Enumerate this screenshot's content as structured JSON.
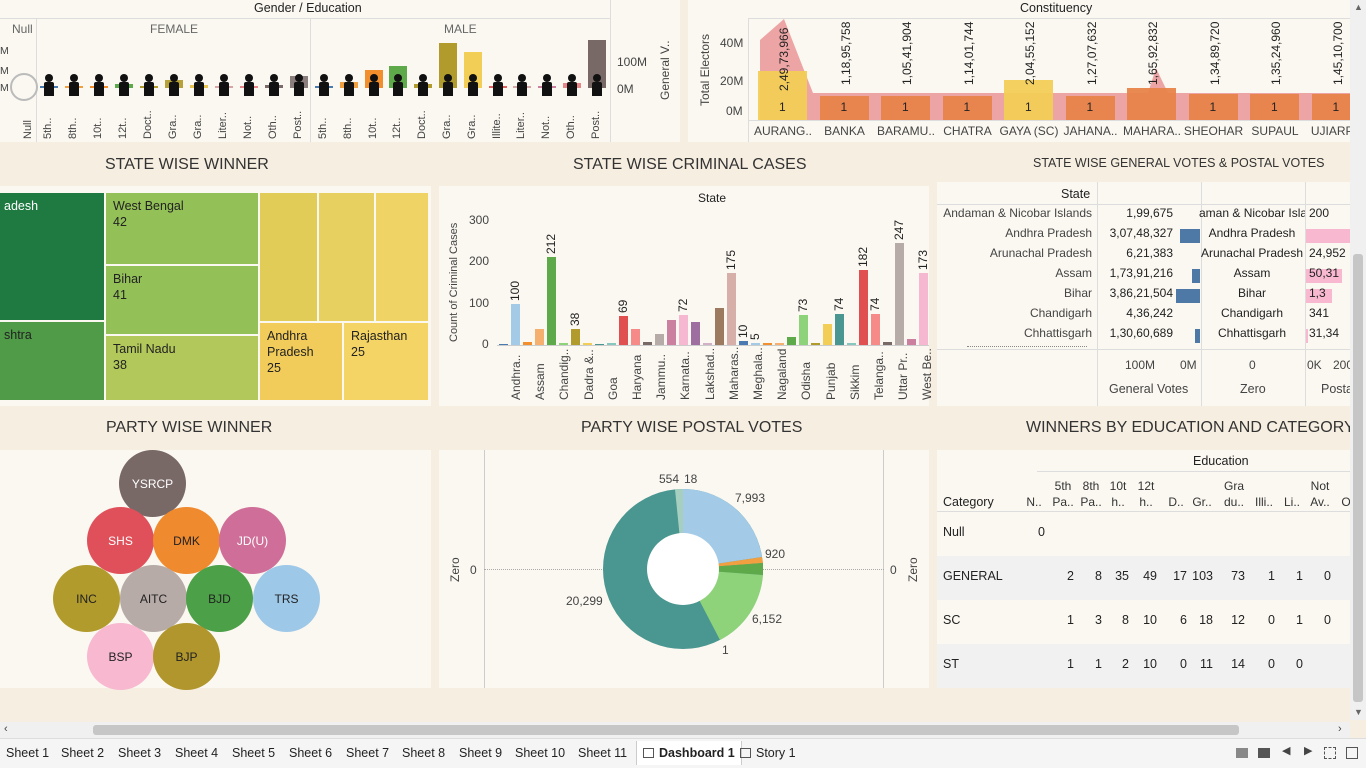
{
  "gender_panel": {
    "title": "Gender / Education",
    "groups": [
      "Null",
      "FEMALE",
      "MALE"
    ],
    "axis_label": "General V..",
    "ticks": [
      "100M",
      "0M"
    ],
    "left_ticks": [
      "M",
      "M",
      "M"
    ],
    "categories": [
      "Null",
      "5th..",
      "8th..",
      "10t..",
      "12t..",
      "Doct..",
      "Gra..",
      "Gra..",
      "Liter..",
      "Not..",
      "Oth..",
      "Post..",
      "5th..",
      "8th..",
      "10t..",
      "12t..",
      "Doct..",
      "Gra..",
      "Gra..",
      "Illite..",
      "Liter..",
      "Not..",
      "Oth..",
      "Post.."
    ]
  },
  "constituency_panel": {
    "title": "Constituency",
    "ylabel": "Total Electors",
    "yticks": [
      "40M",
      "20M",
      "0M"
    ],
    "names": [
      "AURANG..",
      "BANKA",
      "BARAMU..",
      "CHATRA",
      "GAYA (SC)",
      "JAHANA..",
      "MAHARA..",
      "SHEOHAR",
      "SUPAUL",
      "UJIARPU"
    ],
    "values": [
      "2,49,73,966",
      "1,18,95,758",
      "1,05,41,904",
      "1,14,01,744",
      "2,04,55,152",
      "1,27,07,632",
      "1,65,92,832",
      "1,34,89,720",
      "1,35,24,960",
      "1,45,10,700"
    ],
    "counts": [
      "1",
      "1",
      "1",
      "1",
      "1",
      "1",
      "",
      "1",
      "1",
      "1"
    ]
  },
  "state_winner": {
    "title": "STATE WISE WINNER",
    "cells": [
      {
        "name": "adesh",
        "value": ""
      },
      {
        "name": "shtra",
        "value": ""
      },
      {
        "name": "West Bengal",
        "value": "42"
      },
      {
        "name": "Bihar",
        "value": "41"
      },
      {
        "name": "Tamil Nadu",
        "value": "38"
      },
      {
        "name": "Andhra Pradesh",
        "value": "25"
      },
      {
        "name": "Rajasthan",
        "value": "25"
      }
    ]
  },
  "criminal_cases": {
    "title": "STATE WISE CRIMINAL CASES",
    "header": "State",
    "ylabel": "Count of Criminal Cases",
    "yticks": [
      "300",
      "200",
      "100",
      "0"
    ],
    "states": [
      "Andhra..",
      "Assam",
      "Chandig..",
      "Dadra &..",
      "Goa",
      "Haryana",
      "Jammu..",
      "Karnata..",
      "Lakshad..",
      "Maharas..",
      "Meghala..",
      "Nagaland",
      "Odisha",
      "Punjab",
      "Sikkim",
      "Telanga..",
      "Uttar Pr..",
      "West Be.."
    ],
    "labels": [
      "100",
      "212",
      "38",
      "69",
      "72",
      "175",
      "10",
      "5",
      "73",
      "74",
      "182",
      "74",
      "247",
      "173"
    ]
  },
  "general_postal": {
    "title": "STATE WISE GENERAL VOTES & POSTAL VOTES",
    "header": "State",
    "states": [
      "Andaman & Nicobar Islands",
      "Andhra Pradesh",
      "Arunachal Pradesh",
      "Assam",
      "Bihar",
      "Chandigarh",
      "Chhattisgarh"
    ],
    "general": [
      "1,99,675",
      "3,07,48,327",
      "6,21,383",
      "1,73,91,216",
      "3,86,21,504",
      "4,36,242",
      "1,30,60,689"
    ],
    "zero_states": [
      "aman & Nicobar Isla",
      "Andhra Pradesh",
      "Arunachal Pradesh",
      "Assam",
      "Bihar",
      "Chandigarh",
      "Chhattisgarh"
    ],
    "postal": [
      "200",
      "",
      "24,952",
      "50,31",
      "1,3",
      "341",
      "31,34"
    ],
    "axis1": [
      "100M",
      "0M"
    ],
    "axis2": [
      "0"
    ],
    "axis3": [
      "0K",
      "200"
    ],
    "footers": [
      "General Votes",
      "Zero",
      "Posta"
    ]
  },
  "party_winner": {
    "title": "PARTY WISE WINNER",
    "parties": [
      "YSRCP",
      "SHS",
      "DMK",
      "JD(U)",
      "INC",
      "AITC",
      "BJD",
      "TRS",
      "BSP",
      "BJP"
    ]
  },
  "postal_votes": {
    "title": "PARTY WISE POSTAL VOTES",
    "axis": "Zero",
    "zero_left": "0",
    "zero_right": "0",
    "labels": [
      "7,993",
      "920",
      "6,152",
      "1",
      "20,299",
      "554",
      "18"
    ]
  },
  "edu_category": {
    "title": "WINNERS BY EDUCATION AND CATEGORY",
    "header": "Education",
    "row_header": "Category",
    "cols": [
      "N..",
      "5th Pa..",
      "8th Pa..",
      "10t h..",
      "12t h..",
      "D..",
      "Gr..",
      "Gra du..",
      "Illi..",
      "Li..",
      "Not Av..",
      "O"
    ],
    "rows": [
      {
        "name": "Null",
        "vals": [
          "0",
          "",
          "",
          "",
          "",
          "",
          "",
          "",
          "",
          "",
          "",
          ""
        ]
      },
      {
        "name": "GENERAL",
        "vals": [
          "",
          "2",
          "8",
          "35",
          "49",
          "17",
          "103",
          "73",
          "1",
          "1",
          "0",
          ""
        ]
      },
      {
        "name": "SC",
        "vals": [
          "",
          "1",
          "3",
          "8",
          "10",
          "6",
          "18",
          "12",
          "0",
          "1",
          "0",
          ""
        ]
      },
      {
        "name": "ST",
        "vals": [
          "",
          "1",
          "1",
          "2",
          "10",
          "0",
          "11",
          "14",
          "0",
          "0",
          "",
          ""
        ]
      }
    ]
  },
  "tabs": [
    "Sheet 1",
    "Sheet 2",
    "Sheet 3",
    "Sheet 4",
    "Sheet 5",
    "Sheet 6",
    "Sheet 7",
    "Sheet 8",
    "Sheet 9",
    "Sheet 10",
    "Sheet 11",
    "Dashboard 1",
    "Story 1"
  ]
}
